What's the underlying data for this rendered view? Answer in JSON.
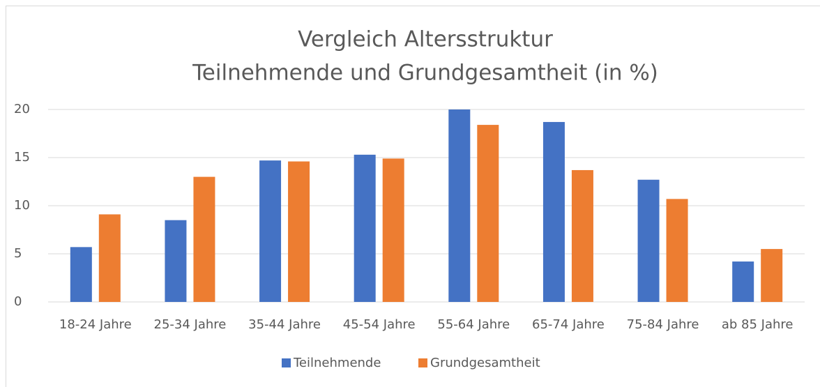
{
  "chart_data": {
    "type": "bar",
    "title": [
      "Vergleich Altersstruktur",
      "Teilnehmende und Grundgesamtheit (in %)"
    ],
    "categories": [
      "18-24 Jahre",
      "25-34 Jahre",
      "35-44 Jahre",
      "45-54 Jahre",
      "55-64 Jahre",
      "65-74 Jahre",
      "75-84 Jahre",
      "ab 85 Jahre"
    ],
    "series": [
      {
        "name": "Teilnehmende",
        "color": "#4472c4",
        "values": [
          5.7,
          8.5,
          14.7,
          15.3,
          20,
          18.7,
          12.7,
          4.2
        ]
      },
      {
        "name": "Grundgesamtheit",
        "color": "#ed7d31",
        "values": [
          9.1,
          13.0,
          14.6,
          14.9,
          18.4,
          13.7,
          10.7,
          5.5
        ]
      }
    ],
    "ylim": [
      0,
      20
    ],
    "yticks": [
      0,
      5,
      10,
      15,
      20
    ],
    "grid": true,
    "legend": "bottom"
  }
}
